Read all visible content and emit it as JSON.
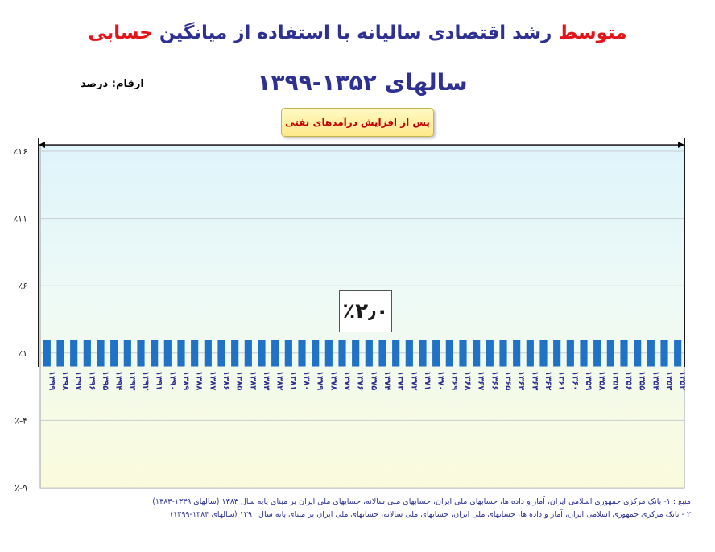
{
  "header": {
    "title_part1": "متوسط",
    "title_part2": " رشد اقتصادی سالیانه با استفاده از میانگین ",
    "title_part3": "حسابی",
    "title_line2": "سالهای ۱۳۵۲-۱۳۹۹",
    "unit_label": "ارقام: درصد"
  },
  "annotation": {
    "period_label": "پس از افزایش درآمدهای نفتی",
    "average_value": "٪۲٫۰"
  },
  "source": {
    "line1": "منبع : ۱- بانک مرکزی جمهوری اسلامی ایران، آمار و داده ها، حسابهای ملی ایران، حسابهای ملی سالانه، حسابهای ملی ایران بر مبنای پایه سال ۱۳۸۳ (سالهای ۱۳۳۹-۱۳۸۳)",
    "line2": "۲    - بانک مرکزی جمهوری اسلامی ایران، آمار و داده ها، حسابهای ملی ایران، حسابهای ملی سالانه، حسابهای ملی ایران بر مبنای پایه سال ۱۳۹۰ (سالهای ۱۳۸۴-۱۳۹۹)"
  },
  "colors": {
    "bar": "#1f72c6",
    "title_blue": "#2e3192",
    "title_red": "#e3151a",
    "bg_top": "#dff4fb",
    "bg_bottom": "#fbfbdc"
  },
  "chart_data": {
    "type": "bar",
    "categories": [
      "۱۳۵۲",
      "۱۳۵۳",
      "۱۳۵۴",
      "۱۳۵۵",
      "۱۳۵۶",
      "۱۳۵۷",
      "۱۳۵۸",
      "۱۳۵۹",
      "۱۳۶۰",
      "۱۳۶۱",
      "۱۳۶۲",
      "۱۳۶۳",
      "۱۳۶۴",
      "۱۳۶۵",
      "۱۳۶۶",
      "۱۳۶۷",
      "۱۳۶۸",
      "۱۳۶۹",
      "۱۳۷۰",
      "۱۳۷۱",
      "۱۳۷۲",
      "۱۳۷۳",
      "۱۳۷۴",
      "۱۳۷۵",
      "۱۳۷۶",
      "۱۳۷۷",
      "۱۳۷۸",
      "۱۳۷۹",
      "۱۳۸۰",
      "۱۳۸۱",
      "۱۳۸۲",
      "۱۳۸۳",
      "۱۳۸۴",
      "۱۳۸۵",
      "۱۳۸۶",
      "۱۳۸۷",
      "۱۳۸۸",
      "۱۳۸۹",
      "۱۳۹۰",
      "۱۳۹۱",
      "۱۳۹۲",
      "۱۳۹۳",
      "۱۳۹۴",
      "۱۳۹۵",
      "۱۳۹۶",
      "۱۳۹۷",
      "۱۳۹۸",
      "۱۳۹۹"
    ],
    "values": [
      2.0,
      2.0,
      2.0,
      2.0,
      2.0,
      2.0,
      2.0,
      2.0,
      2.0,
      2.0,
      2.0,
      2.0,
      2.0,
      2.0,
      2.0,
      2.0,
      2.0,
      2.0,
      2.0,
      2.0,
      2.0,
      2.0,
      2.0,
      2.0,
      2.0,
      2.0,
      2.0,
      2.0,
      2.0,
      2.0,
      2.0,
      2.0,
      2.0,
      2.0,
      2.0,
      2.0,
      2.0,
      2.0,
      2.0,
      2.0,
      2.0,
      2.0,
      2.0,
      2.0,
      2.0,
      2.0,
      2.0,
      2.0
    ],
    "yticks": [
      16,
      11,
      6,
      1,
      -4,
      -9
    ],
    "ytick_labels": [
      "٪۱۶",
      "٪۱۱",
      "٪۶",
      "٪۱",
      "٪-۴",
      "٪-۹"
    ],
    "ylim": [
      -9,
      16
    ],
    "grid": true
  }
}
